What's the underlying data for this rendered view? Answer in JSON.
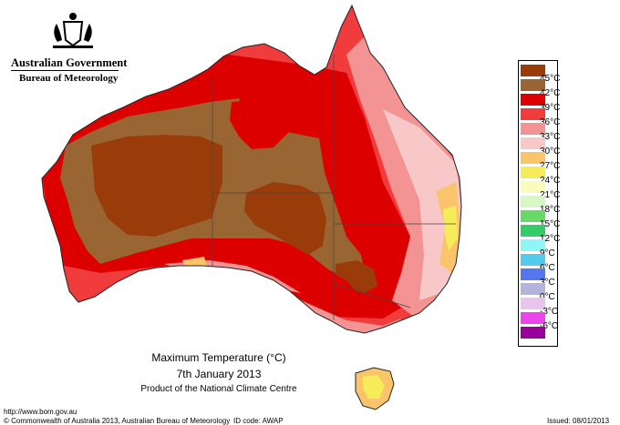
{
  "header": {
    "government": "Australian Government",
    "bureau": "Bureau of Meteorology"
  },
  "map": {
    "title": "Maximum Temperature (°C)",
    "date": "7th January 2013",
    "credit": "Product of the National Climate Centre"
  },
  "legend": {
    "items": [
      {
        "label": "45°C",
        "color": "#9a3c0a"
      },
      {
        "label": "42°C",
        "color": "#996633"
      },
      {
        "label": "39°C",
        "color": "#dd0000"
      },
      {
        "label": "36°C",
        "color": "#f03c3c"
      },
      {
        "label": "33°C",
        "color": "#f49393"
      },
      {
        "label": "30°C",
        "color": "#f8c8c8"
      },
      {
        "label": "27°C",
        "color": "#f9c46a"
      },
      {
        "label": "24°C",
        "color": "#f6ec5a"
      },
      {
        "label": "21°C",
        "color": "#fbfbbc"
      },
      {
        "label": "18°C",
        "color": "#d7f7c4"
      },
      {
        "label": "15°C",
        "color": "#66d966"
      },
      {
        "label": "12°C",
        "color": "#33cc66"
      },
      {
        "label": "9°C",
        "color": "#8ef6f6"
      },
      {
        "label": "6°C",
        "color": "#55c9ee"
      },
      {
        "label": "3°C",
        "color": "#5577ee"
      },
      {
        "label": "0°C",
        "color": "#b3b3dd"
      },
      {
        "label": "-3°C",
        "color": "#e9c4ec"
      },
      {
        "label": "-6°C",
        "color": "#ee44ee"
      },
      {
        "label": "",
        "color": "#990099"
      }
    ]
  },
  "footer": {
    "url": "http://www.bom.gov.au",
    "copyright": "© Commonwealth of Australia 2013, Australian Bureau of Meteorology",
    "id_code": "ID code: AWAP",
    "issued": "Issued: 08/01/2013"
  }
}
